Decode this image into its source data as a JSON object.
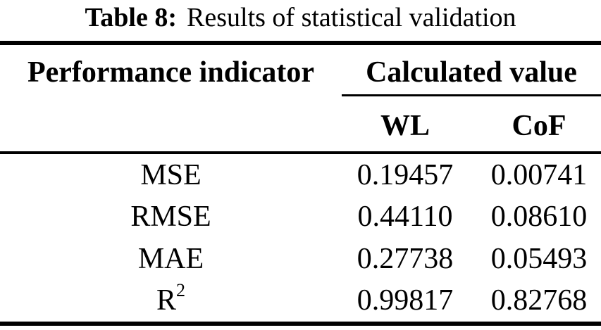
{
  "caption": {
    "label": "Table 8:",
    "title": "Results of statistical validation"
  },
  "table": {
    "headers": {
      "col1": "Performance indicator",
      "group": "Calculated value"
    },
    "subheaders": {
      "wl": "WL",
      "cof": "CoF"
    },
    "rows": [
      {
        "label": "MSE",
        "sup": "",
        "wl": "0.19457",
        "cof": "0.00741"
      },
      {
        "label": "RMSE",
        "sup": "",
        "wl": "0.44110",
        "cof": "0.08610"
      },
      {
        "label": "MAE",
        "sup": "",
        "wl": "0.27738",
        "cof": "0.05493"
      },
      {
        "label": "R",
        "sup": "2",
        "wl": "0.99817",
        "cof": "0.82768"
      }
    ]
  },
  "colors": {
    "text": "#000000",
    "rule": "#000000",
    "background": "#ffffff"
  }
}
